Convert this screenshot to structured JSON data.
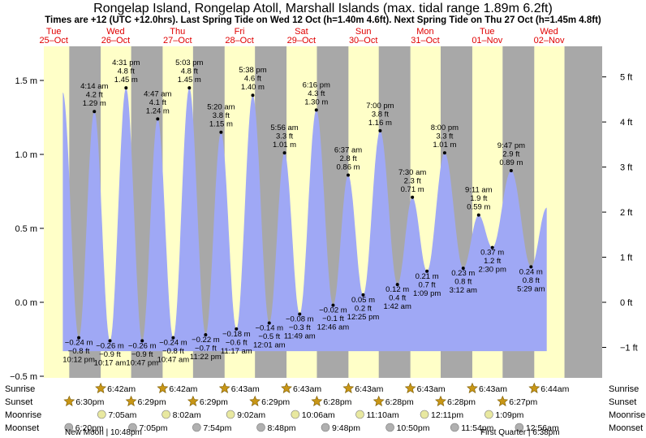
{
  "chart_data": {
    "type": "area",
    "title": "Rongelap Island, Rongelap Atoll, Marshall Islands (max. tidal range 1.89m 6.2ft)",
    "subtitle": "Times are +12 (UTC +12.0hrs). Last Spring Tide on Wed 12 Oct (h=1.40m 4.6ft). Next Spring Tide on Thu 27 Oct (h=1.45m 4.8ft)",
    "y_left_label": "m",
    "y_right_label": "ft",
    "ylim": [
      -0.5,
      1.75
    ],
    "y_left_ticks": [
      "1.5 m",
      "1.0 m",
      "0.5 m",
      "0.0 m",
      "−0.5 m"
    ],
    "y_right_ticks": [
      "5 ft",
      "4 ft",
      "3 ft",
      "2 ft",
      "1 ft",
      "0 ft",
      "−1 ft"
    ],
    "days": [
      {
        "dow": "Tue",
        "date": "25–Oct"
      },
      {
        "dow": "Wed",
        "date": "26–Oct"
      },
      {
        "dow": "Thu",
        "date": "27–Oct"
      },
      {
        "dow": "Fri",
        "date": "28–Oct"
      },
      {
        "dow": "Sat",
        "date": "29–Oct"
      },
      {
        "dow": "Sun",
        "date": "30–Oct"
      },
      {
        "dow": "Mon",
        "date": "31–Oct"
      },
      {
        "dow": "Tue",
        "date": "01–Nov"
      },
      {
        "dow": "Wed",
        "date": "02–Nov"
      }
    ],
    "tides": [
      {
        "day": 0,
        "time": "10:12 pm",
        "m": -0.24,
        "ft": "−0.8 ft",
        "type": "low"
      },
      {
        "day": 1,
        "time": "4:14 am",
        "m": 1.29,
        "ft": "4.2 ft",
        "type": "high"
      },
      {
        "day": 1,
        "time": "10:17 am",
        "m": -0.26,
        "ft": "−0.9 ft",
        "type": "low"
      },
      {
        "day": 1,
        "time": "4:31 pm",
        "m": 1.45,
        "ft": "4.8 ft",
        "type": "high"
      },
      {
        "day": 1,
        "time": "10:47 pm",
        "m": -0.26,
        "ft": "−0.9 ft",
        "type": "low"
      },
      {
        "day": 2,
        "time": "4:47 am",
        "m": 1.24,
        "ft": "4.1 ft",
        "type": "high"
      },
      {
        "day": 2,
        "time": "10:47 am",
        "m": -0.24,
        "ft": "−0.8 ft",
        "type": "low"
      },
      {
        "day": 2,
        "time": "5:03 pm",
        "m": 1.45,
        "ft": "4.8 ft",
        "type": "high"
      },
      {
        "day": 2,
        "time": "11:22 pm",
        "m": -0.22,
        "ft": "−0.7 ft",
        "type": "low"
      },
      {
        "day": 3,
        "time": "5:20 am",
        "m": 1.15,
        "ft": "3.8 ft",
        "type": "high"
      },
      {
        "day": 3,
        "time": "11:17 am",
        "m": -0.18,
        "ft": "−0.6 ft",
        "type": "low"
      },
      {
        "day": 3,
        "time": "5:38 pm",
        "m": 1.4,
        "ft": "4.6 ft",
        "type": "high"
      },
      {
        "day": 4,
        "time": "12:01 am",
        "m": -0.14,
        "ft": "−0.5 ft",
        "type": "low"
      },
      {
        "day": 4,
        "time": "5:56 am",
        "m": 1.01,
        "ft": "3.3 ft",
        "type": "high"
      },
      {
        "day": 4,
        "time": "11:49 am",
        "m": -0.08,
        "ft": "−0.3 ft",
        "type": "low"
      },
      {
        "day": 4,
        "time": "6:16 pm",
        "m": 1.3,
        "ft": "4.3 ft",
        "type": "high"
      },
      {
        "day": 5,
        "time": "12:46 am",
        "m": -0.02,
        "ft": "−0.1 ft",
        "type": "low"
      },
      {
        "day": 5,
        "time": "6:37 am",
        "m": 0.86,
        "ft": "2.8 ft",
        "type": "high"
      },
      {
        "day": 5,
        "time": "12:25 pm",
        "m": 0.05,
        "ft": "0.2 ft",
        "type": "low"
      },
      {
        "day": 5,
        "time": "7:00 pm",
        "m": 1.16,
        "ft": "3.8 ft",
        "type": "high"
      },
      {
        "day": 6,
        "time": "1:42 am",
        "m": 0.12,
        "ft": "0.4 ft",
        "type": "low"
      },
      {
        "day": 6,
        "time": "7:30 am",
        "m": 0.71,
        "ft": "2.3 ft",
        "type": "high"
      },
      {
        "day": 6,
        "time": "1:09 pm",
        "m": 0.21,
        "ft": "0.7 ft",
        "type": "low"
      },
      {
        "day": 6,
        "time": "8:00 pm",
        "m": 1.01,
        "ft": "3.3 ft",
        "type": "high"
      },
      {
        "day": 7,
        "time": "3:12 am",
        "m": 0.23,
        "ft": "0.8 ft",
        "type": "low"
      },
      {
        "day": 7,
        "time": "9:11 am",
        "m": 0.59,
        "ft": "1.9 ft",
        "type": "high"
      },
      {
        "day": 7,
        "time": "2:30 pm",
        "m": 0.37,
        "ft": "1.2 ft",
        "type": "low"
      },
      {
        "day": 7,
        "time": "9:47 pm",
        "m": 0.89,
        "ft": "2.9 ft",
        "type": "high"
      },
      {
        "day": 8,
        "time": "5:29 am",
        "m": 0.24,
        "ft": "0.8 ft",
        "type": "low"
      }
    ],
    "sunrise": [
      "6:42am",
      "6:42am",
      "6:43am",
      "6:43am",
      "6:43am",
      "6:43am",
      "6:43am",
      "6:44am"
    ],
    "sunset": [
      "6:30pm",
      "6:29pm",
      "6:29pm",
      "6:29pm",
      "6:28pm",
      "6:28pm",
      "6:28pm",
      "6:27pm"
    ],
    "moonrise": [
      "7:05am",
      "8:02am",
      "9:02am",
      "10:06am",
      "11:10am",
      "12:11pm",
      "1:09pm"
    ],
    "moonset": [
      "6:20pm",
      "7:05pm",
      "7:54pm",
      "8:48pm",
      "9:48pm",
      "10:50pm",
      "11:54pm",
      "12:56am"
    ],
    "row_labels": {
      "sunrise": "Sunrise",
      "sunset": "Sunset",
      "moonrise": "Moonrise",
      "moonset": "Moonset"
    },
    "phases": [
      {
        "name": "New Moon",
        "time": "10:48pm"
      },
      {
        "name": "First Quarter",
        "time": "6:38pm"
      }
    ],
    "colors": {
      "day": "#ffffc8",
      "night": "#a8a8a8",
      "water": "#9fa8f5",
      "date": "#e00000",
      "star": "#c89616",
      "moon": "#e8e8a0",
      "moonset": "#b0b0b0"
    }
  }
}
